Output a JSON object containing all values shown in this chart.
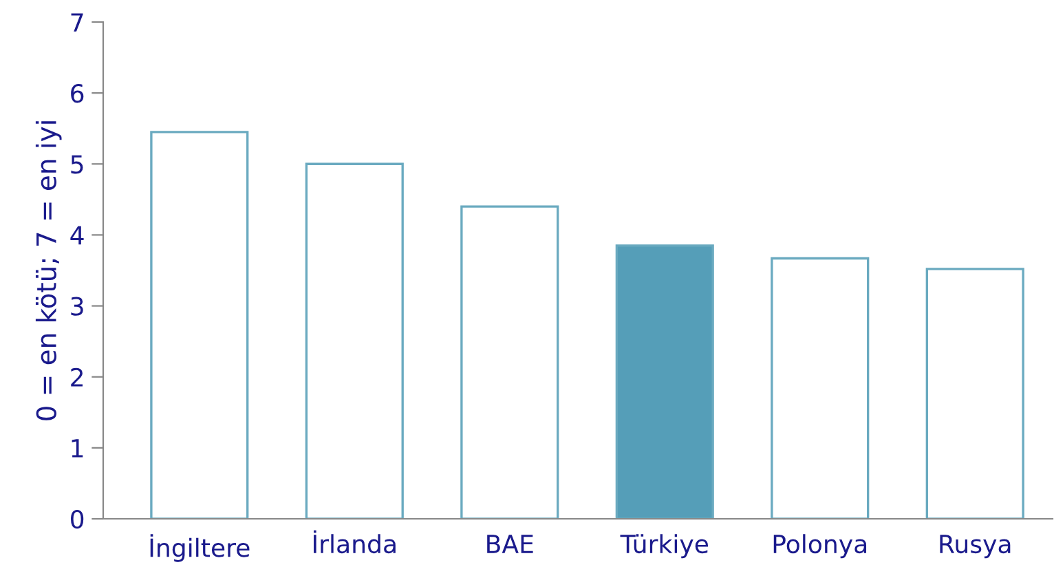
{
  "chart_data": {
    "type": "bar",
    "ylabel": "0 = en kötü; 7 = en iyi",
    "categories": [
      "İngiltere",
      "İrlanda",
      "BAE",
      "Türkiye",
      "Polonya",
      "Rusya"
    ],
    "values": [
      5.45,
      5.0,
      4.4,
      3.85,
      3.67,
      3.52
    ],
    "colors": [
      "#ffffff",
      "#ffffff",
      "#ffffff",
      "#559eb8",
      "#ffffff",
      "#ffffff"
    ],
    "ylim": [
      0,
      7
    ],
    "yticks": [
      0,
      1,
      2,
      3,
      4,
      5,
      6,
      7
    ],
    "grid": false
  }
}
